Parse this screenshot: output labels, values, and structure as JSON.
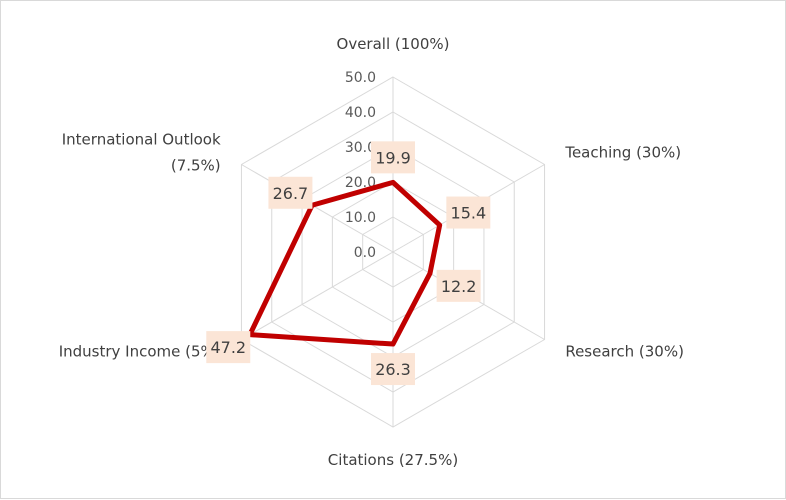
{
  "chart_data": {
    "type": "radar",
    "categories": [
      [
        "Overall (100%)"
      ],
      [
        "Teaching (30%)"
      ],
      [
        "Research (30%)"
      ],
      [
        "Citations (27.5%)"
      ],
      [
        "Industry Income (5%)"
      ],
      [
        "International Outlook",
        "(7.5%)"
      ]
    ],
    "series": [
      {
        "values": [
          19.9,
          15.4,
          12.2,
          26.3,
          47.2,
          26.7
        ]
      }
    ],
    "ticks": [
      "0.0",
      "10.0",
      "20.0",
      "30.0",
      "40.0",
      "50.0"
    ],
    "rlim": [
      0,
      50
    ],
    "grid": true,
    "legend": "none"
  },
  "colors": {
    "series_line": "#c00000",
    "grid": "#d9d9d9",
    "label_box": "#fbe5d6"
  }
}
